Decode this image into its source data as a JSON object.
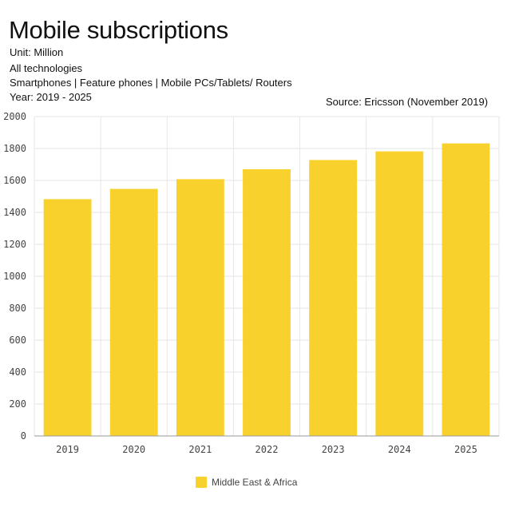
{
  "header": {
    "title": "Mobile subscriptions",
    "unit": "Unit: Million",
    "technologies": "All technologies",
    "devices": "Smartphones | Feature phones | Mobile PCs/Tablets/ Routers",
    "years": "Year: 2019 - 2025",
    "source": "Source: Ericsson (November 2019)"
  },
  "colors": {
    "bar": "#F9D12C",
    "grid": "#e6e6e6",
    "axis": "#999999",
    "tick_text": "#444444"
  },
  "chart_data": {
    "type": "bar",
    "title": "Mobile subscriptions",
    "xlabel": "",
    "ylabel": "",
    "categories": [
      "2019",
      "2020",
      "2021",
      "2022",
      "2023",
      "2024",
      "2025"
    ],
    "series": [
      {
        "name": "Middle East & Africa",
        "values": [
          1483,
          1547,
          1608,
          1670,
          1728,
          1782,
          1832
        ]
      }
    ],
    "ylim": [
      0,
      2000
    ],
    "yticks": [
      0,
      200,
      400,
      600,
      800,
      1000,
      1200,
      1400,
      1600,
      1800,
      2000
    ],
    "grid": true,
    "legend_position": "bottom-center"
  }
}
